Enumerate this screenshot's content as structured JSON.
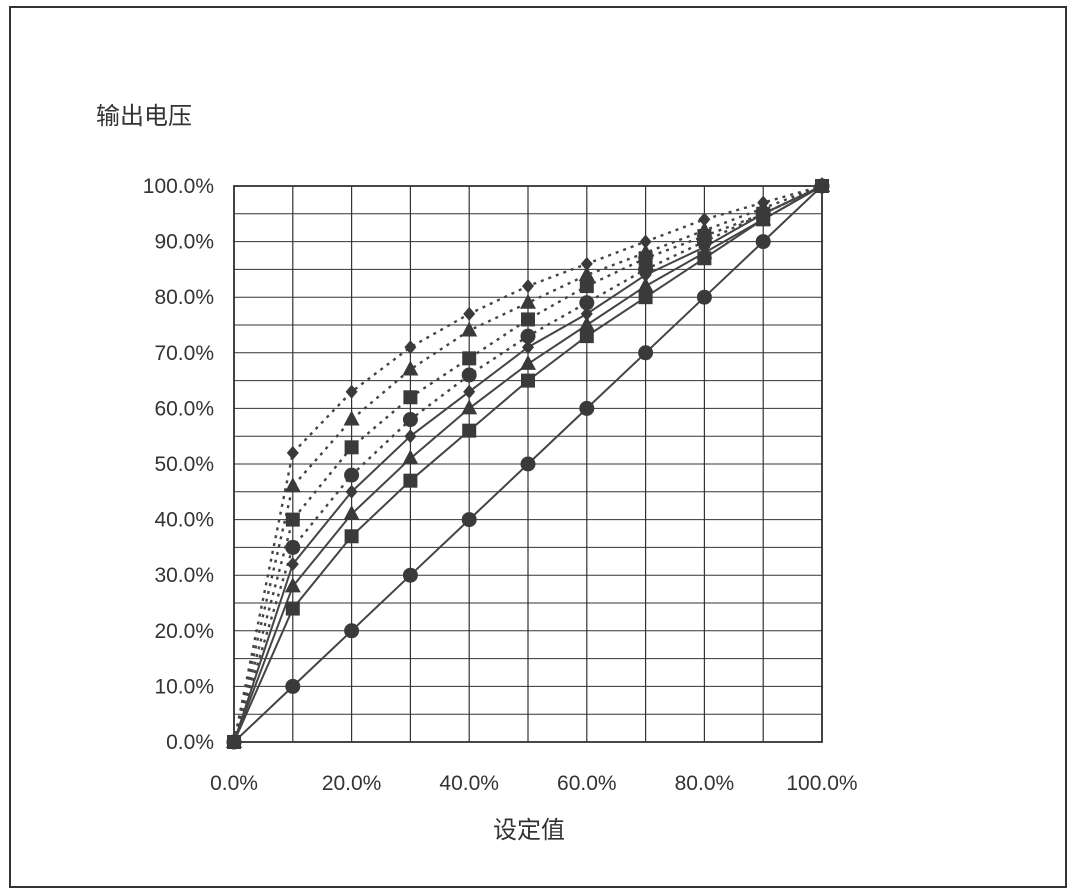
{
  "chart_data": {
    "type": "line",
    "title": "",
    "ylabel": "输出电压",
    "xlabel": "设定值",
    "xlim": [
      0,
      100
    ],
    "ylim": [
      0,
      100
    ],
    "grid": true,
    "x_ticks": [
      "0.0%",
      "20.0%",
      "40.0%",
      "60.0%",
      "80.0%",
      "100.0%"
    ],
    "y_ticks": [
      "0.0%",
      "10.0%",
      "20.0%",
      "30.0%",
      "40.0%",
      "50.0%",
      "60.0%",
      "70.0%",
      "80.0%",
      "90.0%",
      "100.0%"
    ],
    "x": [
      0,
      10,
      20,
      30,
      40,
      50,
      60,
      70,
      80,
      90,
      100
    ],
    "series": [
      {
        "marker": "circle",
        "style": "solid",
        "values": [
          0,
          10,
          20,
          30,
          40,
          50,
          60,
          70,
          80,
          90,
          100
        ]
      },
      {
        "marker": "square",
        "style": "solid",
        "values": [
          0,
          24,
          37,
          47,
          56,
          65,
          73,
          80,
          87,
          94,
          100
        ]
      },
      {
        "marker": "triangle",
        "style": "solid",
        "values": [
          0,
          28,
          41,
          51,
          60,
          68,
          75,
          82,
          88,
          94,
          100
        ]
      },
      {
        "marker": "diamond",
        "style": "solid",
        "values": [
          0,
          32,
          45,
          55,
          63,
          71,
          77,
          84,
          89,
          95,
          100
        ]
      },
      {
        "marker": "circle",
        "style": "dotted",
        "values": [
          0,
          35,
          48,
          58,
          66,
          73,
          79,
          85,
          90,
          95,
          100
        ]
      },
      {
        "marker": "square",
        "style": "dotted",
        "values": [
          0,
          40,
          53,
          62,
          69,
          76,
          82,
          87,
          91,
          95,
          100
        ]
      },
      {
        "marker": "triangle",
        "style": "dotted",
        "values": [
          0,
          46,
          58,
          67,
          74,
          79,
          84,
          88,
          92,
          96,
          100
        ]
      },
      {
        "marker": "diamond",
        "style": "dotted",
        "values": [
          0,
          52,
          63,
          71,
          77,
          82,
          86,
          90,
          94,
          97,
          100
        ]
      }
    ],
    "colors": {
      "line": "#444444",
      "marker": "#3a3a3a",
      "grid": "#333333"
    }
  }
}
